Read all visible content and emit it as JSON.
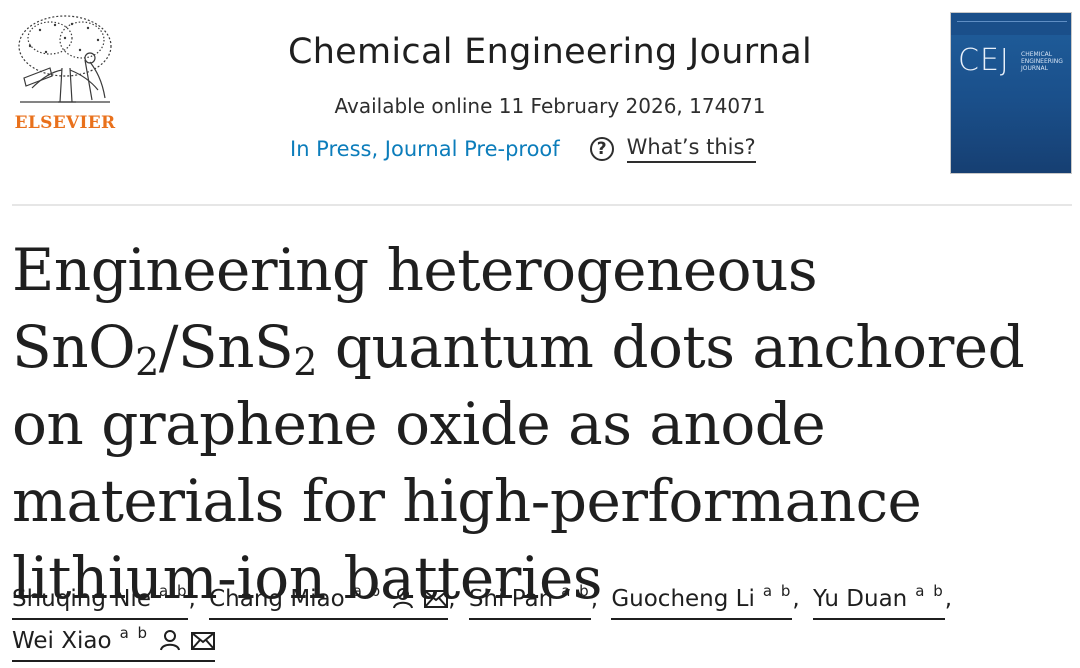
{
  "publisher": {
    "name": "ELSEVIER",
    "logo_icon": "elsevier-tree-logo"
  },
  "journal": {
    "title": "Chemical Engineering Journal",
    "available": "Available online 11 February 2026, 174071",
    "status_link": "In Press, Journal Pre-proof",
    "help_icon": "question-circle-icon",
    "help_symbol": "?",
    "help_link": "What’s this?",
    "cover": {
      "abbr": "CEJ",
      "full_name": "CHEMICAL ENGINEERING JOURNAL"
    }
  },
  "article": {
    "title_parts": {
      "p1": "Engineering heterogeneous SnO",
      "s1": "2",
      "p2": "/SnS",
      "s2": "2",
      "p3": " quantum dots anchored on graphene oxide as anode materials for high-performance lithium-ion batteries"
    }
  },
  "authors": [
    {
      "name": "Shuqing Nie",
      "affil": "a b",
      "corresponding": false
    },
    {
      "name": "Chang Miao",
      "affil": "a b",
      "corresponding": true
    },
    {
      "name": "Shi Pan",
      "affil": "a b",
      "corresponding": false
    },
    {
      "name": "Guocheng Li",
      "affil": "a b",
      "corresponding": false
    },
    {
      "name": "Yu Duan",
      "affil": "a b",
      "corresponding": false
    },
    {
      "name": "Wei Xiao",
      "affil": "a b",
      "corresponding": true
    }
  ],
  "colors": {
    "link": "#0c7dbb",
    "elsevier_orange": "#e9711c",
    "cover_blue": "#1a4f8a"
  }
}
